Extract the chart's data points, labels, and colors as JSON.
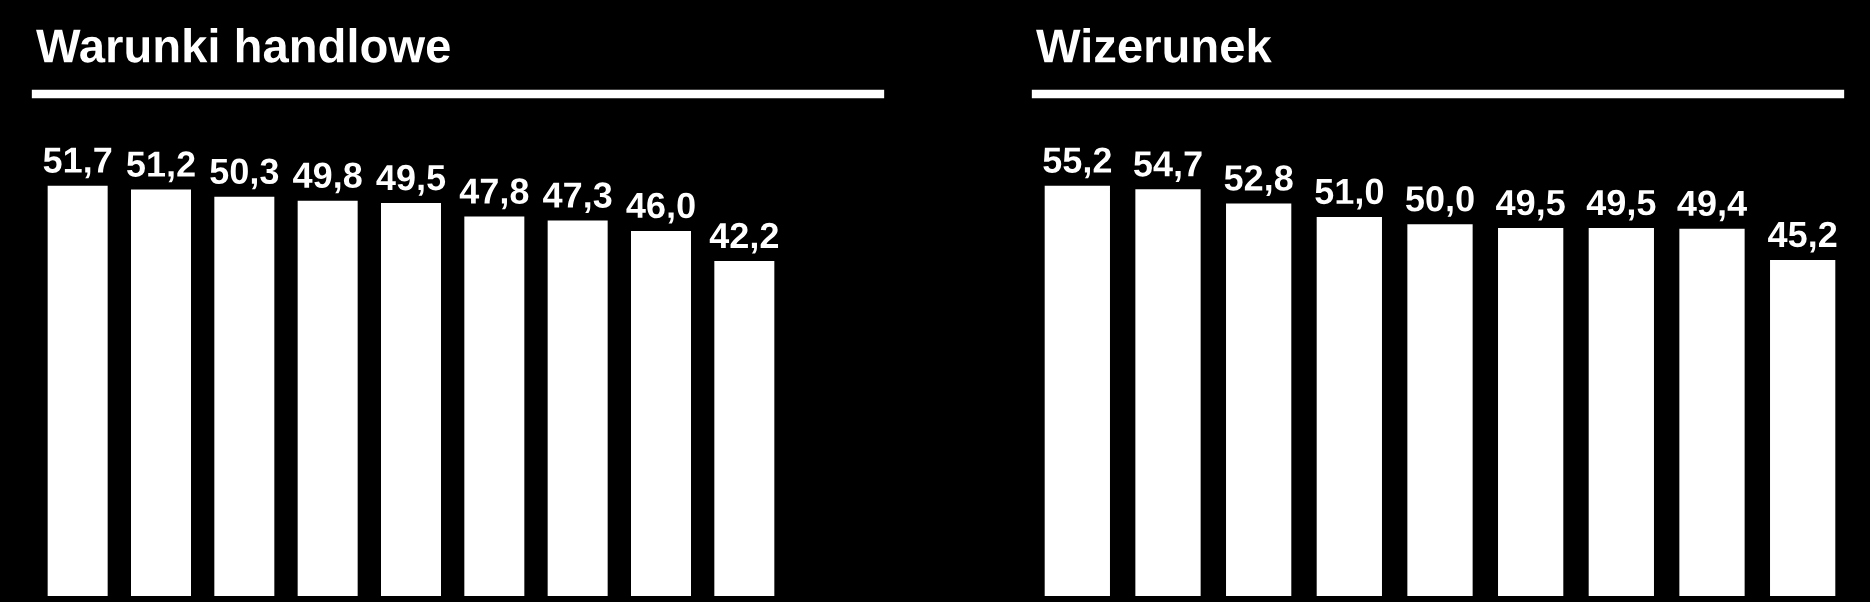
{
  "chart_data": [
    {
      "type": "bar",
      "title": "Warunki handlowe",
      "categories": [
        null,
        null,
        null,
        null,
        null,
        null,
        null,
        null,
        null
      ],
      "values": [
        51.7,
        51.2,
        50.3,
        49.8,
        49.5,
        47.8,
        47.3,
        46.0,
        42.2
      ],
      "value_labels": [
        "51,7",
        "51,2",
        "50,3",
        "49,8",
        "49,5",
        "47,8",
        "47,3",
        "46,0",
        "42,2"
      ],
      "color": "#ffffff",
      "tick_labels": false,
      "grid": false,
      "legend": false
    },
    {
      "type": "bar",
      "title": "Wizerunek",
      "categories": [
        null,
        null,
        null,
        null,
        null,
        null,
        null,
        null,
        null
      ],
      "values": [
        55.2,
        54.7,
        52.8,
        51.0,
        50.0,
        49.5,
        49.5,
        49.4,
        45.2
      ],
      "value_labels": [
        "55,2",
        "54,7",
        "52,8",
        "51,0",
        "50,0",
        "49,5",
        "49,5",
        "49,4",
        "45,2"
      ],
      "color": "#ffffff",
      "tick_labels": false,
      "grid": false,
      "legend": false
    }
  ]
}
